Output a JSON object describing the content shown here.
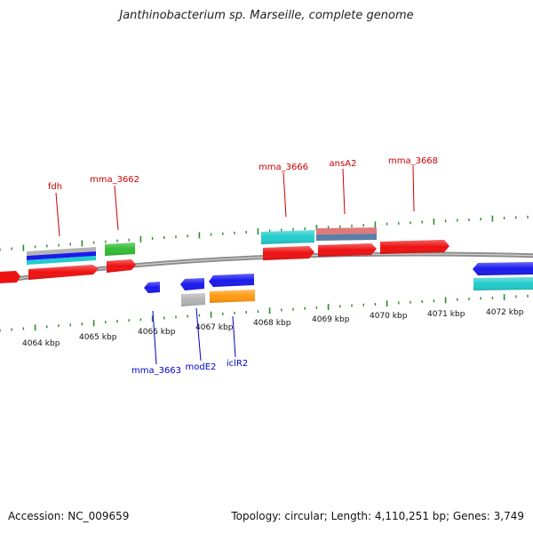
{
  "title": "Janthinobacterium sp. Marseille, complete genome",
  "footer": {
    "accession": "Accession: NC_009659",
    "topology": "Topology: circular; Length: 4,110,251 bp; Genes: 3,749"
  },
  "colors": {
    "backbone": "#8c8c8c",
    "tick": "#2e8b2e",
    "label_forward": "#cc0000",
    "label_reverse": "#0000cc",
    "red": "#ee1111",
    "blue": "#1a1aee",
    "cyan": "#22cccc",
    "green": "#33bb33",
    "orange": "#ff9911",
    "gray": "#b3b3b3",
    "pink": "#e07a7a",
    "steel": "#5a7fa8"
  },
  "ruler_labels": [
    "4064 kbp",
    "4065 kbp",
    "4066 kbp",
    "4067 kbp",
    "4068 kbp",
    "4069 kbp",
    "4070 kbp",
    "4071 kbp",
    "4072 kbp"
  ],
  "gene_labels": [
    {
      "name": "fdh",
      "strand": "forward"
    },
    {
      "name": "mma_3662",
      "strand": "forward"
    },
    {
      "name": "mma_3666",
      "strand": "forward"
    },
    {
      "name": "ansA2",
      "strand": "forward"
    },
    {
      "name": "mma_3668",
      "strand": "forward"
    },
    {
      "name": "mma_3663",
      "strand": "reverse"
    },
    {
      "name": "modE2",
      "strand": "reverse"
    },
    {
      "name": "iclR2",
      "strand": "reverse"
    }
  ]
}
